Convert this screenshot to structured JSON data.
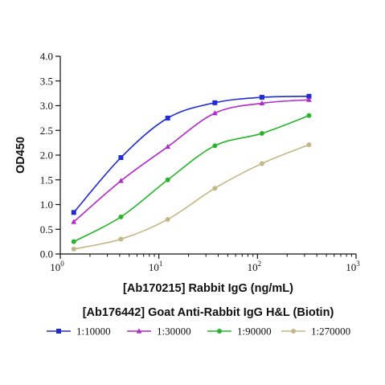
{
  "chart_data": {
    "type": "line",
    "xscale": "log",
    "xlim": [
      1,
      1000
    ],
    "ylim": [
      0,
      4.0
    ],
    "xlabel": "[Ab170215] Rabbit IgG (ng/mL)",
    "ylabel": "OD450",
    "legend_title": "[Ab176442] Goat Anti-Rabbit IgG H&L (Biotin)",
    "legend_position": "bottom",
    "grid": false,
    "x_ticks": [
      {
        "value": 1,
        "base": "10",
        "exp": "0"
      },
      {
        "value": 10,
        "base": "10",
        "exp": "1"
      },
      {
        "value": 100,
        "base": "10",
        "exp": "2"
      },
      {
        "value": 1000,
        "base": "10",
        "exp": "3"
      }
    ],
    "y_ticks": [
      "0.0",
      "0.5",
      "1.0",
      "1.5",
      "2.0",
      "2.5",
      "3.0",
      "3.5",
      "4.0"
    ],
    "x": [
      1.37,
      4.12,
      12.3,
      37.0,
      111,
      333
    ],
    "series": [
      {
        "name": "1:10000",
        "color": "#1f2bd4",
        "marker": "square",
        "values": [
          0.84,
          1.95,
          2.75,
          3.06,
          3.17,
          3.19
        ]
      },
      {
        "name": "1:30000",
        "color": "#b229c9",
        "marker": "triangle",
        "values": [
          0.65,
          1.48,
          2.17,
          2.85,
          3.05,
          3.12
        ]
      },
      {
        "name": "1:90000",
        "color": "#27b52c",
        "marker": "circle",
        "values": [
          0.25,
          0.75,
          1.5,
          2.19,
          2.44,
          2.8
        ]
      },
      {
        "name": "1:270000",
        "color": "#c7b685",
        "marker": "circle",
        "values": [
          0.1,
          0.3,
          0.7,
          1.33,
          1.83,
          2.21
        ]
      }
    ]
  }
}
